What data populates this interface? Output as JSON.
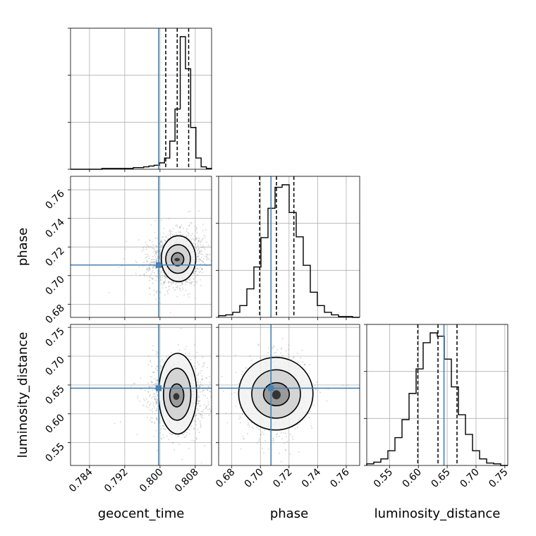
{
  "chart_data": {
    "type": "corner",
    "parameters": [
      "geocent_time",
      "phase",
      "luminosity_distance"
    ],
    "axis_labels": {
      "geocent_time": "geocent_time",
      "phase": "phase",
      "luminosity_distance": "luminosity_distance"
    },
    "ranges": {
      "geocent_time": [
        0.7797,
        0.8117
      ],
      "phase": [
        0.6708,
        0.7694
      ],
      "luminosity_distance": [
        0.5104,
        0.7551
      ]
    },
    "ticks": {
      "geocent_time": {
        "values": [
          0.784,
          0.792,
          0.8,
          0.808
        ],
        "labels": [
          "0.784",
          "0.792",
          "0.800",
          "0.808"
        ]
      },
      "phase": {
        "values": [
          0.68,
          0.7,
          0.72,
          0.74,
          0.76
        ],
        "labels": [
          "0.68",
          "0.70",
          "0.72",
          "0.74",
          "0.76"
        ]
      },
      "luminosity_distance": {
        "values": [
          0.55,
          0.6,
          0.65,
          0.7,
          0.75
        ],
        "labels": [
          "0.55",
          "0.60",
          "0.65",
          "0.70",
          "0.75"
        ]
      }
    },
    "truths": {
      "geocent_time": 0.7997,
      "phase": 0.7074,
      "luminosity_distance": 0.6444
    },
    "quantiles": {
      "geocent_time": [
        0.8013,
        0.8039,
        0.8065
      ],
      "phase": [
        0.6995,
        0.7112,
        0.7234
      ],
      "luminosity_distance": [
        0.599,
        0.634,
        0.667
      ]
    },
    "histograms": {
      "geocent_time": {
        "edges": [
          0.7797,
          0.8117
        ],
        "counts": [
          0,
          0,
          0,
          0,
          0,
          0,
          1,
          1,
          1,
          1,
          1,
          1,
          2,
          2,
          3,
          4,
          5,
          8,
          14,
          35,
          75,
          165,
          125,
          52,
          14,
          3,
          1
        ]
      },
      "phase": {
        "edges": [
          0.6708,
          0.7694
        ],
        "counts": [
          2,
          3,
          6,
          14,
          34,
          60,
          95,
          130,
          155,
          158,
          125,
          96,
          62,
          30,
          14,
          6,
          3,
          1,
          1,
          0
        ]
      },
      "luminosity_distance": {
        "edges": [
          0.5104,
          0.7551
        ],
        "counts": [
          2,
          4,
          8,
          18,
          34,
          56,
          88,
          118,
          150,
          162,
          158,
          130,
          96,
          62,
          38,
          18,
          8,
          3,
          2,
          0
        ]
      }
    },
    "pairs": [
      {
        "x": "geocent_time",
        "y": "phase",
        "mean": [
          0.8039,
          0.7112
        ],
        "sd": [
          0.003,
          0.0095
        ],
        "corr": 0.1,
        "contour_radii": [
          0.12,
          0.32,
          0.62,
          1.0
        ],
        "contour_centers": [
          [
            0.8039,
            0.7112
          ],
          [
            0.804,
            0.7114
          ],
          [
            0.8041,
            0.7116
          ],
          [
            0.8042,
            0.7118
          ]
        ],
        "contour_half_widths": [
          [
            0.0006,
            0.0012
          ],
          [
            0.0014,
            0.0046
          ],
          [
            0.0028,
            0.01
          ],
          [
            0.0039,
            0.016
          ]
        ]
      },
      {
        "x": "geocent_time",
        "y": "luminosity_distance",
        "mean": [
          0.8039,
          0.634
        ],
        "sd": [
          0.003,
          0.03
        ],
        "corr": -0.05,
        "contour_radii": [
          0.12,
          0.32,
          0.62,
          1.0
        ],
        "contour_centers": [
          [
            0.8037,
            0.63
          ],
          [
            0.8038,
            0.632
          ],
          [
            0.8039,
            0.634
          ],
          [
            0.804,
            0.635
          ]
        ],
        "contour_half_widths": [
          [
            0.0007,
            0.006
          ],
          [
            0.0016,
            0.02
          ],
          [
            0.0031,
            0.045
          ],
          [
            0.0043,
            0.07
          ]
        ]
      },
      {
        "x": "phase",
        "y": "luminosity_distance",
        "mean": [
          0.7112,
          0.634
        ],
        "sd": [
          0.0095,
          0.03
        ],
        "corr": 0.05,
        "contour_radii": [
          0.12,
          0.32,
          0.62,
          1.0
        ],
        "contour_centers": [
          [
            0.7112,
            0.633
          ],
          [
            0.7112,
            0.634
          ],
          [
            0.711,
            0.6345
          ],
          [
            0.7108,
            0.635
          ]
        ],
        "contour_half_widths": [
          [
            0.003,
            0.008
          ],
          [
            0.009,
            0.02
          ],
          [
            0.017,
            0.042
          ],
          [
            0.026,
            0.063
          ]
        ]
      }
    ],
    "truth_color": "#4682b4",
    "hist_color": "#000000",
    "grid": true,
    "samples_color": "#808080"
  }
}
